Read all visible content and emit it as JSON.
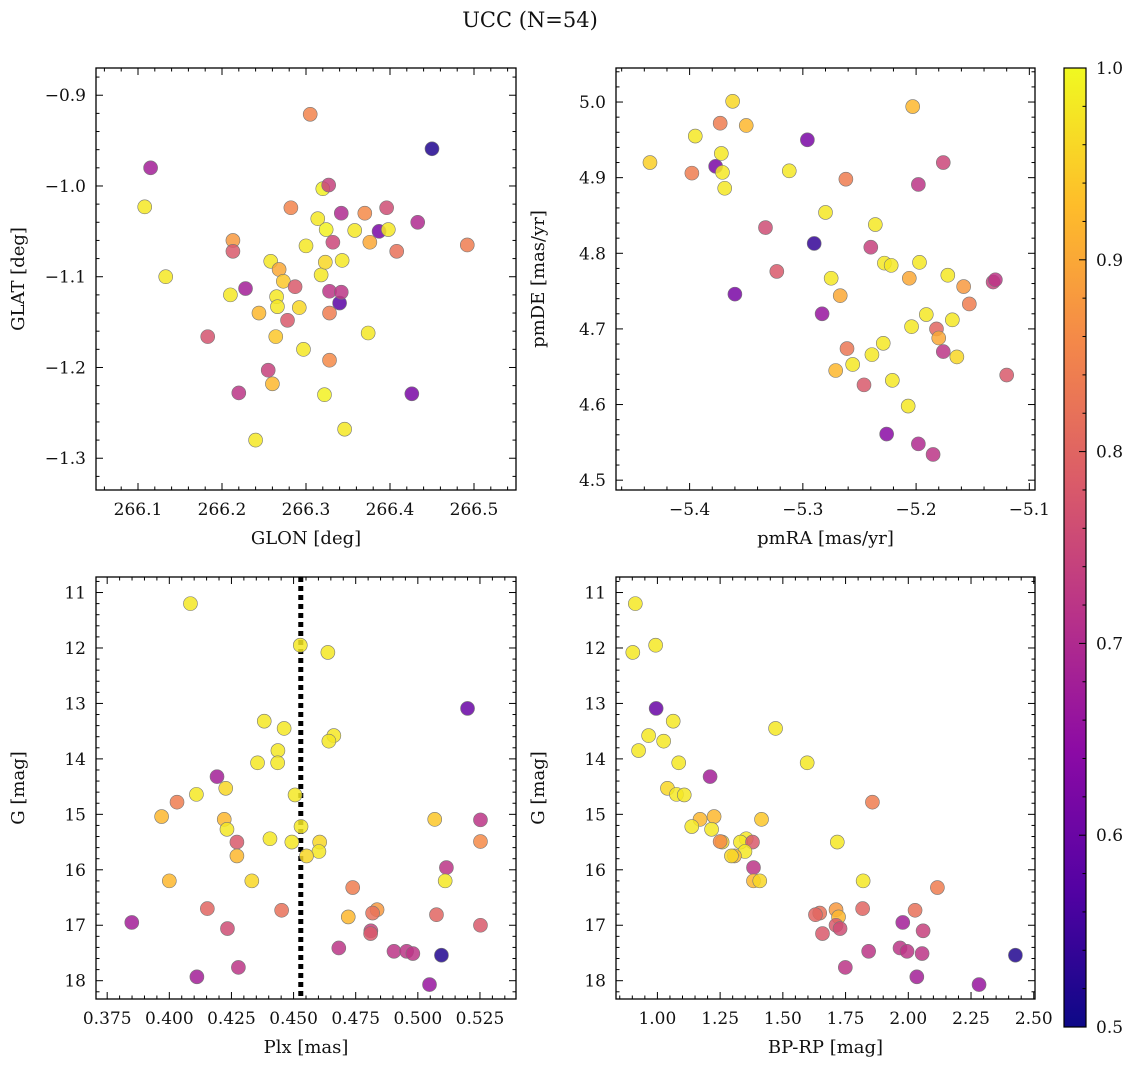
{
  "suptitle": "UCC (N=54)",
  "colorbar": {
    "ticks": [
      "0.5",
      "0.6",
      "0.7",
      "0.8",
      "0.9",
      "1.0"
    ],
    "min": 0.5,
    "max": 1.0,
    "colormap": "plasma"
  },
  "chart_data": [
    {
      "type": "scatter",
      "xlabel": "GLON [deg]",
      "ylabel": "GLAT [deg]",
      "xlim": [
        266.05,
        266.55
      ],
      "ylim": [
        -1.335,
        -0.87
      ],
      "xticks": [
        "266.1",
        "266.2",
        "266.3",
        "266.4",
        "266.5"
      ],
      "yticks": [
        "−0.9",
        "−1.0",
        "−1.1",
        "−1.2",
        "−1.3"
      ],
      "points": [
        [
          266.115,
          -0.98,
          0.68
        ],
        [
          266.108,
          -1.023,
          0.98
        ],
        [
          266.133,
          -1.1,
          0.98
        ],
        [
          266.183,
          -1.166,
          0.77
        ],
        [
          266.21,
          -1.12,
          0.98
        ],
        [
          266.213,
          -1.06,
          0.88
        ],
        [
          266.213,
          -1.072,
          0.78
        ],
        [
          266.22,
          -1.228,
          0.72
        ],
        [
          266.228,
          -1.113,
          0.68
        ],
        [
          266.24,
          -1.28,
          0.98
        ],
        [
          266.244,
          -1.14,
          0.92
        ],
        [
          266.255,
          -1.203,
          0.74
        ],
        [
          266.258,
          -1.083,
          0.98
        ],
        [
          266.26,
          -1.218,
          0.92
        ],
        [
          266.264,
          -1.166,
          0.94
        ],
        [
          266.265,
          -1.122,
          0.98
        ],
        [
          266.266,
          -1.133,
          0.98
        ],
        [
          266.268,
          -1.092,
          0.9
        ],
        [
          266.273,
          -1.105,
          0.94
        ],
        [
          266.278,
          -1.148,
          0.78
        ],
        [
          266.282,
          -1.024,
          0.85
        ],
        [
          266.287,
          -1.111,
          0.78
        ],
        [
          266.292,
          -1.134,
          0.96
        ],
        [
          266.297,
          -1.18,
          0.98
        ],
        [
          266.3,
          -1.066,
          0.98
        ],
        [
          266.305,
          -0.921,
          0.85
        ],
        [
          266.314,
          -1.036,
          0.98
        ],
        [
          266.318,
          -1.098,
          0.98
        ],
        [
          266.32,
          -1.003,
          0.99
        ],
        [
          266.322,
          -1.23,
          0.99
        ],
        [
          266.323,
          -1.084,
          0.96
        ],
        [
          266.324,
          -1.048,
          0.99
        ],
        [
          266.327,
          -0.999,
          0.74
        ],
        [
          266.328,
          -1.192,
          0.86
        ],
        [
          266.328,
          -1.116,
          0.72
        ],
        [
          266.328,
          -1.14,
          0.84
        ],
        [
          266.332,
          -1.062,
          0.75
        ],
        [
          266.34,
          -1.129,
          0.58
        ],
        [
          266.342,
          -1.117,
          0.72
        ],
        [
          266.342,
          -1.03,
          0.7
        ],
        [
          266.343,
          -1.082,
          0.98
        ],
        [
          266.346,
          -1.268,
          0.98
        ],
        [
          266.358,
          -1.049,
          0.98
        ],
        [
          266.37,
          -1.03,
          0.86
        ],
        [
          266.374,
          -1.162,
          0.98
        ],
        [
          266.376,
          -1.062,
          0.9
        ],
        [
          266.387,
          -1.05,
          0.62
        ],
        [
          266.396,
          -1.024,
          0.76
        ],
        [
          266.398,
          -1.048,
          0.98
        ],
        [
          266.408,
          -1.072,
          0.82
        ],
        [
          266.426,
          -1.229,
          0.62
        ],
        [
          266.433,
          -1.04,
          0.7
        ],
        [
          266.45,
          -0.959,
          0.52
        ],
        [
          266.492,
          -1.065,
          0.84
        ]
      ]
    },
    {
      "type": "scatter",
      "xlabel": "pmRA [mas/yr]",
      "ylabel": "pmDE [mas/yr]",
      "xlim": [
        -5.465,
        -5.095
      ],
      "ylim": [
        4.487,
        5.045
      ],
      "xticks": [
        "−5.4",
        "−5.3",
        "−5.2",
        "−5.1"
      ],
      "yticks": [
        "5.0",
        "4.9",
        "4.8",
        "4.7",
        "4.6",
        "4.5"
      ],
      "points": [
        [
          -5.435,
          4.92,
          0.95
        ],
        [
          -5.398,
          4.906,
          0.84
        ],
        [
          -5.395,
          4.955,
          0.98
        ],
        [
          -5.377,
          4.915,
          0.62
        ],
        [
          -5.373,
          4.972,
          0.84
        ],
        [
          -5.372,
          4.932,
          0.98
        ],
        [
          -5.371,
          4.907,
          0.98
        ],
        [
          -5.369,
          4.886,
          0.98
        ],
        [
          -5.362,
          5.001,
          0.96
        ],
        [
          -5.36,
          4.746,
          0.62
        ],
        [
          -5.35,
          4.969,
          0.92
        ],
        [
          -5.333,
          4.834,
          0.76
        ],
        [
          -5.323,
          4.776,
          0.78
        ],
        [
          -5.312,
          4.909,
          0.98
        ],
        [
          -5.296,
          4.95,
          0.62
        ],
        [
          -5.29,
          4.813,
          0.54
        ],
        [
          -5.283,
          4.72,
          0.66
        ],
        [
          -5.28,
          4.854,
          0.98
        ],
        [
          -5.275,
          4.767,
          0.98
        ],
        [
          -5.271,
          4.645,
          0.92
        ],
        [
          -5.267,
          4.744,
          0.9
        ],
        [
          -5.262,
          4.898,
          0.84
        ],
        [
          -5.261,
          4.674,
          0.83
        ],
        [
          -5.256,
          4.653,
          0.98
        ],
        [
          -5.246,
          4.626,
          0.78
        ],
        [
          -5.24,
          4.808,
          0.74
        ],
        [
          -5.239,
          4.666,
          0.98
        ],
        [
          -5.236,
          4.838,
          0.98
        ],
        [
          -5.229,
          4.681,
          0.98
        ],
        [
          -5.228,
          4.787,
          0.98
        ],
        [
          -5.226,
          4.561,
          0.64
        ],
        [
          -5.222,
          4.784,
          0.98
        ],
        [
          -5.221,
          4.632,
          0.98
        ],
        [
          -5.207,
          4.598,
          0.98
        ],
        [
          -5.206,
          4.767,
          0.9
        ],
        [
          -5.204,
          4.703,
          0.98
        ],
        [
          -5.203,
          4.994,
          0.92
        ],
        [
          -5.198,
          4.891,
          0.72
        ],
        [
          -5.198,
          4.548,
          0.7
        ],
        [
          -5.197,
          4.788,
          0.98
        ],
        [
          -5.191,
          4.719,
          0.98
        ],
        [
          -5.185,
          4.534,
          0.72
        ],
        [
          -5.182,
          4.7,
          0.8
        ],
        [
          -5.18,
          4.688,
          0.9
        ],
        [
          -5.176,
          4.67,
          0.72
        ],
        [
          -5.176,
          4.92,
          0.75
        ],
        [
          -5.172,
          4.771,
          0.98
        ],
        [
          -5.168,
          4.712,
          0.98
        ],
        [
          -5.164,
          4.663,
          0.96
        ],
        [
          -5.158,
          4.756,
          0.88
        ],
        [
          -5.153,
          4.733,
          0.84
        ],
        [
          -5.132,
          4.762,
          0.74
        ],
        [
          -5.13,
          4.765,
          0.72
        ],
        [
          -5.12,
          4.639,
          0.78
        ]
      ]
    },
    {
      "type": "scatter",
      "xlabel": "Plx [mas]",
      "ylabel": "G [mag]",
      "xlim": [
        0.3705,
        0.5395
      ],
      "ylim": [
        18.33,
        10.72
      ],
      "xticks": [
        "0.375",
        "0.400",
        "0.425",
        "0.450",
        "0.475",
        "0.500",
        "0.525"
      ],
      "yticks": [
        "11",
        "12",
        "13",
        "14",
        "15",
        "16",
        "17",
        "18"
      ],
      "vline": 0.4529,
      "points": [
        [
          0.4085,
          11.2,
          0.98
        ],
        [
          0.4527,
          11.95,
          0.98
        ],
        [
          0.4638,
          12.08,
          0.98
        ],
        [
          0.52,
          13.09,
          0.6
        ],
        [
          0.4382,
          13.32,
          0.98
        ],
        [
          0.4462,
          13.45,
          0.98
        ],
        [
          0.4662,
          13.58,
          0.98
        ],
        [
          0.4642,
          13.68,
          0.98
        ],
        [
          0.4437,
          13.85,
          0.98
        ],
        [
          0.4355,
          14.07,
          0.98
        ],
        [
          0.4436,
          14.07,
          0.98
        ],
        [
          0.4192,
          14.32,
          0.68
        ],
        [
          0.4227,
          14.53,
          0.96
        ],
        [
          0.4109,
          14.64,
          0.98
        ],
        [
          0.4506,
          14.65,
          0.98
        ],
        [
          0.4031,
          14.78,
          0.84
        ],
        [
          0.3969,
          15.04,
          0.92
        ],
        [
          0.4221,
          15.09,
          0.92
        ],
        [
          0.5068,
          15.09,
          0.94
        ],
        [
          0.5252,
          15.1,
          0.72
        ],
        [
          0.453,
          15.22,
          0.98
        ],
        [
          0.4232,
          15.27,
          0.98
        ],
        [
          0.4405,
          15.44,
          0.98
        ],
        [
          0.4493,
          15.5,
          0.98
        ],
        [
          0.4605,
          15.5,
          0.96
        ],
        [
          0.4272,
          15.5,
          0.78
        ],
        [
          0.5252,
          15.49,
          0.86
        ],
        [
          0.4602,
          15.67,
          0.98
        ],
        [
          0.4272,
          15.75,
          0.92
        ],
        [
          0.4552,
          15.75,
          0.96
        ],
        [
          0.5115,
          15.96,
          0.72
        ],
        [
          0.4,
          16.2,
          0.92
        ],
        [
          0.4332,
          16.2,
          0.96
        ],
        [
          0.511,
          16.2,
          0.98
        ],
        [
          0.4738,
          16.32,
          0.84
        ],
        [
          0.4153,
          16.7,
          0.8
        ],
        [
          0.4452,
          16.73,
          0.82
        ],
        [
          0.4836,
          16.72,
          0.88
        ],
        [
          0.4818,
          16.78,
          0.82
        ],
        [
          0.472,
          16.85,
          0.92
        ],
        [
          0.5075,
          16.81,
          0.8
        ],
        [
          0.3849,
          16.95,
          0.68
        ],
        [
          0.5252,
          17.0,
          0.78
        ],
        [
          0.4234,
          17.06,
          0.76
        ],
        [
          0.4811,
          17.1,
          0.74
        ],
        [
          0.481,
          17.15,
          0.78
        ],
        [
          0.4682,
          17.41,
          0.72
        ],
        [
          0.4904,
          17.47,
          0.72
        ],
        [
          0.4955,
          17.47,
          0.72
        ],
        [
          0.498,
          17.51,
          0.72
        ],
        [
          0.5095,
          17.54,
          0.52
        ],
        [
          0.4278,
          17.76,
          0.72
        ],
        [
          0.4111,
          17.93,
          0.68
        ],
        [
          0.5047,
          18.07,
          0.66
        ]
      ]
    },
    {
      "type": "scatter",
      "xlabel": "BP-RP [mag]",
      "ylabel": "G [mag]",
      "xlim": [
        0.835,
        2.505
      ],
      "ylim": [
        18.33,
        10.72
      ],
      "xticks": [
        "1.00",
        "1.25",
        "1.50",
        "1.75",
        "2.00",
        "2.25",
        "2.50"
      ],
      "yticks": [
        "11",
        "12",
        "13",
        "14",
        "15",
        "16",
        "17",
        "18"
      ],
      "points": [
        [
          0.912,
          11.2,
          0.98
        ],
        [
          0.902,
          12.08,
          0.98
        ],
        [
          0.993,
          11.95,
          0.98
        ],
        [
          0.995,
          13.09,
          0.6
        ],
        [
          1.063,
          13.32,
          0.98
        ],
        [
          1.471,
          13.45,
          0.98
        ],
        [
          0.965,
          13.58,
          0.98
        ],
        [
          1.025,
          13.68,
          0.98
        ],
        [
          0.925,
          13.85,
          0.98
        ],
        [
          1.085,
          14.07,
          0.98
        ],
        [
          1.597,
          14.07,
          0.98
        ],
        [
          1.21,
          14.32,
          0.68
        ],
        [
          1.04,
          14.53,
          0.96
        ],
        [
          1.076,
          14.64,
          0.98
        ],
        [
          1.107,
          14.65,
          0.98
        ],
        [
          1.857,
          14.78,
          0.84
        ],
        [
          1.17,
          15.09,
          0.92
        ],
        [
          1.226,
          15.04,
          0.92
        ],
        [
          1.415,
          15.09,
          0.94
        ],
        [
          1.137,
          15.22,
          0.98
        ],
        [
          1.216,
          15.27,
          0.98
        ],
        [
          1.354,
          15.44,
          0.98
        ],
        [
          1.331,
          15.5,
          0.98
        ],
        [
          1.258,
          15.5,
          0.96
        ],
        [
          1.379,
          15.5,
          0.78
        ],
        [
          1.25,
          15.49,
          0.86
        ],
        [
          1.717,
          15.5,
          0.98
        ],
        [
          1.349,
          15.67,
          0.98
        ],
        [
          1.307,
          15.75,
          0.92
        ],
        [
          1.295,
          15.75,
          0.96
        ],
        [
          1.383,
          15.96,
          0.72
        ],
        [
          1.383,
          16.2,
          0.92
        ],
        [
          1.408,
          16.2,
          0.96
        ],
        [
          1.82,
          16.2,
          0.98
        ],
        [
          2.116,
          16.32,
          0.84
        ],
        [
          1.818,
          16.7,
          0.8
        ],
        [
          2.027,
          16.73,
          0.82
        ],
        [
          1.712,
          16.72,
          0.88
        ],
        [
          1.647,
          16.78,
          0.82
        ],
        [
          1.722,
          16.85,
          0.92
        ],
        [
          1.63,
          16.81,
          0.8
        ],
        [
          1.978,
          16.95,
          0.68
        ],
        [
          1.712,
          17.0,
          0.78
        ],
        [
          1.728,
          17.06,
          0.76
        ],
        [
          2.059,
          17.1,
          0.74
        ],
        [
          1.658,
          17.15,
          0.78
        ],
        [
          1.967,
          17.41,
          0.72
        ],
        [
          1.995,
          17.47,
          0.72
        ],
        [
          1.842,
          17.47,
          0.72
        ],
        [
          2.055,
          17.51,
          0.72
        ],
        [
          2.427,
          17.54,
          0.52
        ],
        [
          1.749,
          17.76,
          0.72
        ],
        [
          2.034,
          17.93,
          0.68
        ],
        [
          2.282,
          18.07,
          0.66
        ]
      ]
    }
  ]
}
